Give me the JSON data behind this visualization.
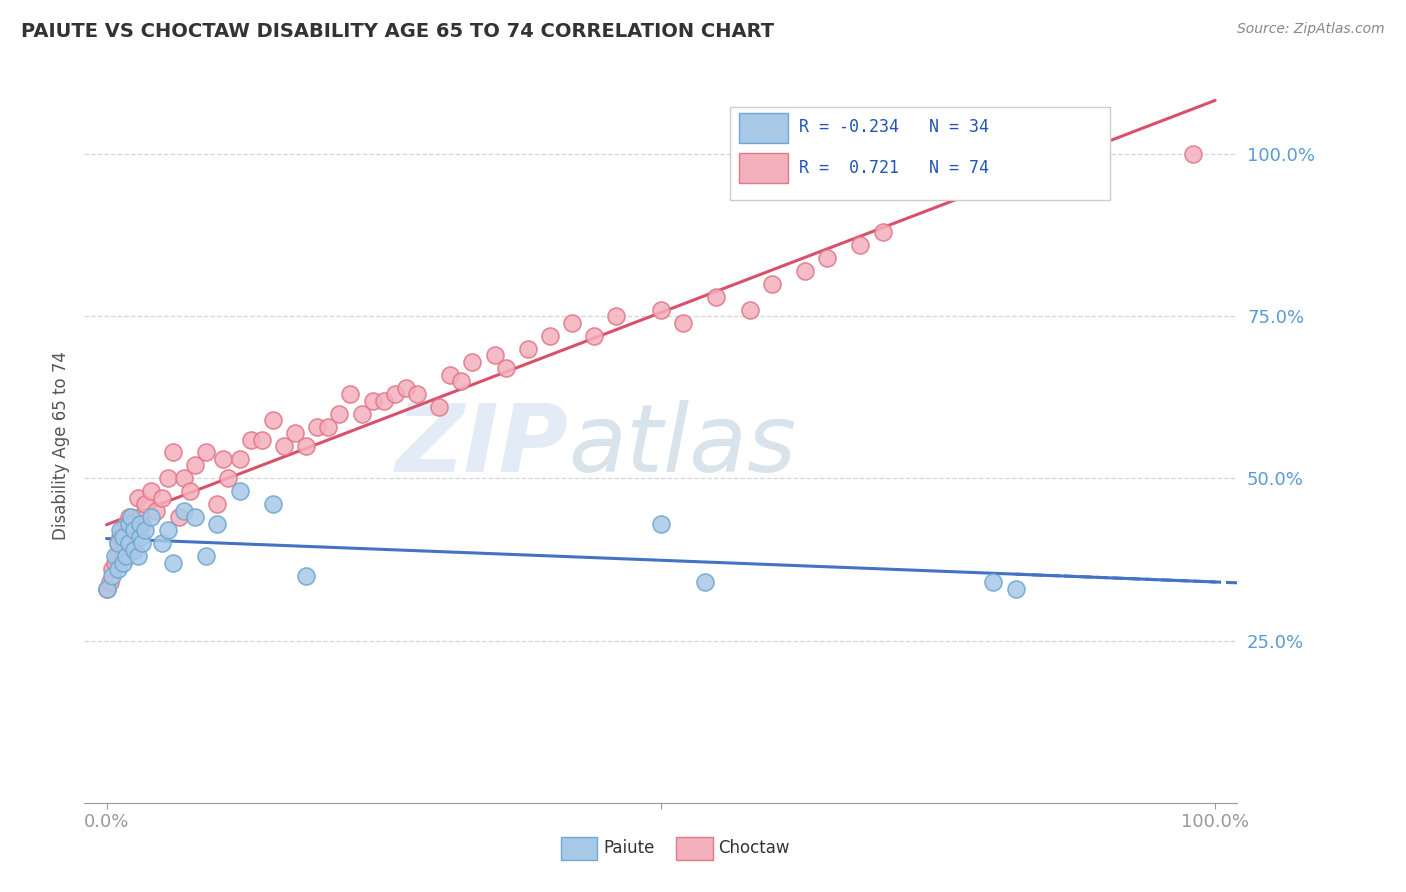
{
  "title": "PAIUTE VS CHOCTAW DISABILITY AGE 65 TO 74 CORRELATION CHART",
  "source_text": "Source: ZipAtlas.com",
  "ylabel": "Disability Age 65 to 74",
  "legend_label1": "Paiute",
  "legend_label2": "Choctaw",
  "r_paiute": -0.234,
  "n_paiute": 34,
  "r_choctaw": 0.721,
  "n_choctaw": 74,
  "watermark_zip": "ZIP",
  "watermark_atlas": "atlas",
  "paiute_color": "#a8c8e8",
  "paiute_edge": "#6fa8d0",
  "choctaw_color": "#f4b0bc",
  "choctaw_edge": "#e07888",
  "trend_paiute_color": "#4472c4",
  "trend_choctaw_color": "#d9506a",
  "paiute_x": [
    0.0,
    0.005,
    0.008,
    0.01,
    0.01,
    0.012,
    0.015,
    0.015,
    0.018,
    0.02,
    0.02,
    0.022,
    0.025,
    0.025,
    0.028,
    0.03,
    0.03,
    0.032,
    0.035,
    0.04,
    0.05,
    0.055,
    0.06,
    0.07,
    0.08,
    0.09,
    0.1,
    0.12,
    0.15,
    0.18,
    0.5,
    0.54,
    0.8,
    0.82
  ],
  "paiute_y": [
    0.33,
    0.35,
    0.38,
    0.4,
    0.36,
    0.42,
    0.37,
    0.41,
    0.38,
    0.43,
    0.4,
    0.44,
    0.39,
    0.42,
    0.38,
    0.41,
    0.43,
    0.4,
    0.42,
    0.44,
    0.4,
    0.42,
    0.37,
    0.45,
    0.44,
    0.38,
    0.43,
    0.48,
    0.46,
    0.35,
    0.43,
    0.34,
    0.34,
    0.33
  ],
  "choctaw_x": [
    0.0,
    0.003,
    0.005,
    0.008,
    0.01,
    0.01,
    0.012,
    0.015,
    0.015,
    0.018,
    0.02,
    0.02,
    0.022,
    0.025,
    0.025,
    0.028,
    0.03,
    0.03,
    0.032,
    0.035,
    0.04,
    0.045,
    0.05,
    0.055,
    0.06,
    0.065,
    0.07,
    0.075,
    0.08,
    0.09,
    0.1,
    0.105,
    0.11,
    0.12,
    0.13,
    0.14,
    0.15,
    0.16,
    0.17,
    0.18,
    0.19,
    0.2,
    0.21,
    0.22,
    0.23,
    0.24,
    0.25,
    0.26,
    0.27,
    0.28,
    0.3,
    0.31,
    0.32,
    0.33,
    0.35,
    0.36,
    0.38,
    0.4,
    0.42,
    0.44,
    0.46,
    0.5,
    0.52,
    0.55,
    0.58,
    0.6,
    0.63,
    0.65,
    0.68,
    0.7,
    0.82,
    0.84,
    0.86,
    0.98
  ],
  "choctaw_y": [
    0.33,
    0.34,
    0.36,
    0.37,
    0.38,
    0.4,
    0.41,
    0.42,
    0.38,
    0.43,
    0.4,
    0.44,
    0.42,
    0.43,
    0.39,
    0.47,
    0.41,
    0.44,
    0.43,
    0.46,
    0.48,
    0.45,
    0.47,
    0.5,
    0.54,
    0.44,
    0.5,
    0.48,
    0.52,
    0.54,
    0.46,
    0.53,
    0.5,
    0.53,
    0.56,
    0.56,
    0.59,
    0.55,
    0.57,
    0.55,
    0.58,
    0.58,
    0.6,
    0.63,
    0.6,
    0.62,
    0.62,
    0.63,
    0.64,
    0.63,
    0.61,
    0.66,
    0.65,
    0.68,
    0.69,
    0.67,
    0.7,
    0.72,
    0.74,
    0.72,
    0.75,
    0.76,
    0.74,
    0.78,
    0.76,
    0.8,
    0.82,
    0.84,
    0.86,
    0.88,
    0.97,
    0.98,
    0.95,
    1.0
  ],
  "xlim": [
    -0.02,
    1.02
  ],
  "ylim": [
    0.0,
    1.1
  ],
  "ytick_values": [
    0.25,
    0.5,
    0.75,
    1.0
  ],
  "yticklabels": [
    "25.0%",
    "50.0%",
    "75.0%",
    "100.0%"
  ],
  "background_color": "#ffffff",
  "grid_color": "#cccccc",
  "title_color": "#333333",
  "tick_label_color": "#5b9bd5"
}
